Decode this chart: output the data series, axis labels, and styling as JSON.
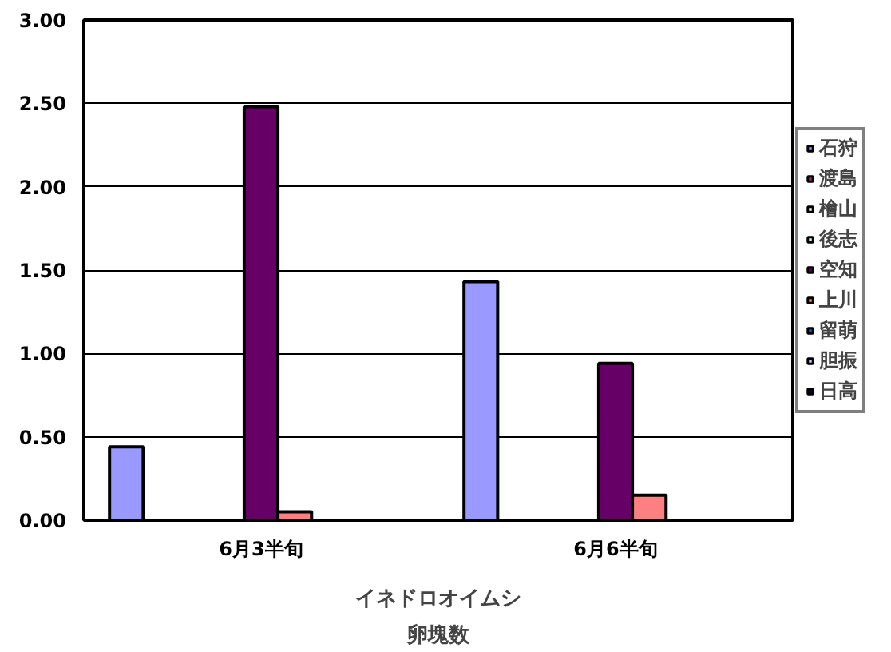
{
  "chart_data": {
    "type": "bar",
    "xlabel": "イネドロオイムシ",
    "annotations": [
      "卵塊数"
    ],
    "categories": [
      "6月3半旬",
      "6月6半旬"
    ],
    "series": [
      {
        "name": "石狩",
        "color": "#9999ff",
        "values": [
          0.44,
          1.43
        ]
      },
      {
        "name": "渡島",
        "color": "#993366",
        "values": [
          null,
          null
        ]
      },
      {
        "name": "檜山",
        "color": "#ffffcc",
        "values": [
          null,
          null
        ]
      },
      {
        "name": "後志",
        "color": "#ccffff",
        "values": [
          null,
          null
        ]
      },
      {
        "name": "空知",
        "color": "#660066",
        "values": [
          2.48,
          0.94
        ]
      },
      {
        "name": "上川",
        "color": "#ff8080",
        "values": [
          0.05,
          0.15
        ]
      },
      {
        "name": "留萌",
        "color": "#0066cc",
        "values": [
          null,
          null
        ]
      },
      {
        "name": "胆振",
        "color": "#ccccff",
        "values": [
          null,
          null
        ]
      },
      {
        "name": "日高",
        "color": "#000080",
        "values": [
          null,
          null
        ]
      }
    ],
    "ylim": [
      0,
      3
    ],
    "yticks": [
      {
        "value": 0,
        "label": "0.00"
      },
      {
        "value": 0.5,
        "label": "0.50"
      },
      {
        "value": 1,
        "label": "1.00"
      },
      {
        "value": 1.5,
        "label": "1.50"
      },
      {
        "value": 2,
        "label": "2.00"
      },
      {
        "value": 2.5,
        "label": "2.50"
      },
      {
        "value": 3,
        "label": "3.00"
      }
    ],
    "grid": "y",
    "legend": "right"
  }
}
